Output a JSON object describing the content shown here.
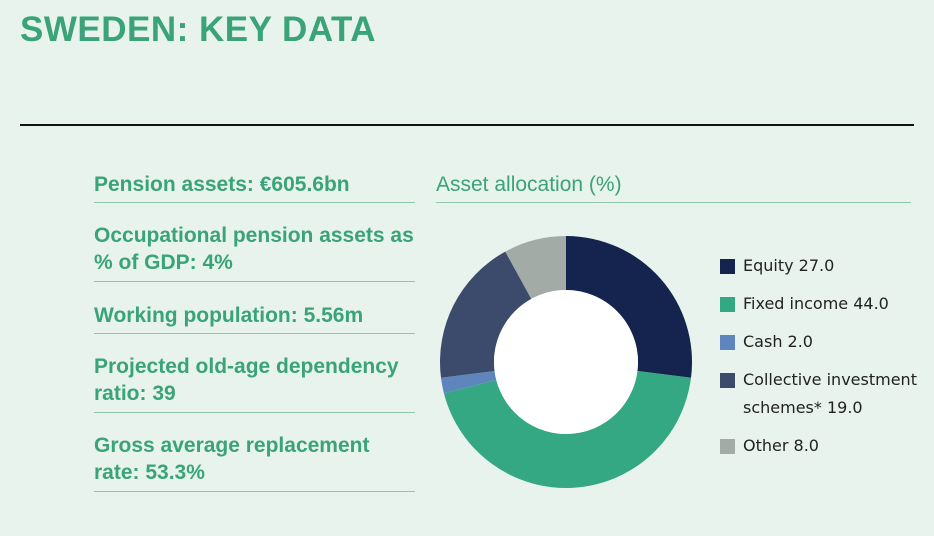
{
  "title": "SWEDEN: KEY DATA",
  "stats": [
    "Pension assets: €605.6bn",
    "Occupational pension assets as % of GDP: 4%",
    "Working population: 5.56m",
    "Projected old-age dependency ratio: 39",
    "Gross average replacement rate: 53.3%"
  ],
  "chart_data": {
    "type": "pie",
    "title": "Asset allocation (%)",
    "donut": true,
    "legend_position": "right",
    "categories": [
      "Equity",
      "Fixed income",
      "Cash",
      "Collective investment schemes*",
      "Other"
    ],
    "values": [
      27.0,
      44.0,
      2.0,
      19.0,
      8.0
    ],
    "colors": [
      "#14244e",
      "#34a783",
      "#5e86bd",
      "#3c4a6b",
      "#a3aba6"
    ],
    "legend_labels": [
      "Equity 27.0",
      "Fixed income 44.0",
      "Cash 2.0",
      "Collective investment schemes* 19.0",
      "Other 8.0"
    ]
  }
}
